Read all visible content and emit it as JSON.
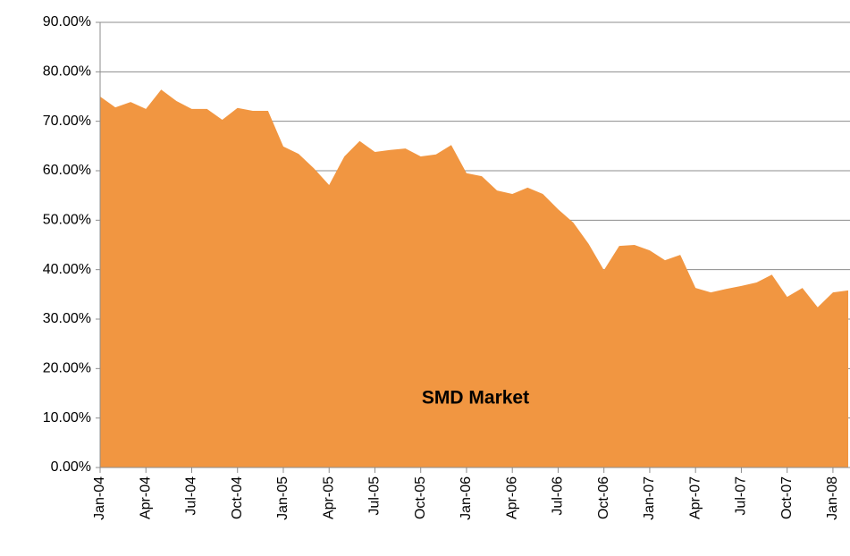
{
  "chart_data": {
    "type": "area",
    "annotation": "SMD Market",
    "color": "#f19641",
    "grid": true,
    "categories": [
      "Jan-04",
      null,
      null,
      "Apr-04",
      null,
      null,
      "Jul-04",
      null,
      null,
      "Oct-04",
      null,
      null,
      "Jan-05",
      null,
      null,
      "Apr-05",
      null,
      null,
      "Jul-05",
      null,
      null,
      "Oct-05",
      null,
      null,
      "Jan-06",
      null,
      null,
      "Apr-06",
      null,
      null,
      "Jul-06",
      null,
      null,
      "Oct-06",
      null,
      null,
      "Jan-07",
      null,
      null,
      "Apr-07",
      null,
      null,
      "Jul-07",
      null,
      null,
      "Oct-07",
      null,
      null,
      "Jan-08",
      null
    ],
    "values": [
      75.0,
      72.8,
      73.9,
      72.5,
      76.4,
      74.1,
      72.5,
      72.5,
      70.3,
      72.7,
      72.1,
      72.1,
      64.9,
      63.4,
      60.5,
      57.1,
      62.9,
      66.0,
      63.8,
      64.2,
      64.5,
      62.9,
      63.3,
      65.2,
      59.5,
      58.9,
      56.0,
      55.3,
      56.6,
      55.3,
      52.2,
      49.5,
      45.2,
      39.9,
      44.8,
      45.0,
      43.9,
      41.9,
      43.0,
      36.3,
      35.4,
      36.1,
      36.7,
      37.4,
      39.0,
      34.5,
      36.3,
      32.4,
      35.4,
      35.8
    ],
    "ylim": [
      0,
      90
    ],
    "yticks": [
      {
        "value": 0,
        "label": "0.00%"
      },
      {
        "value": 10,
        "label": "10.00%"
      },
      {
        "value": 20,
        "label": "20.00%"
      },
      {
        "value": 30,
        "label": "30.00%"
      },
      {
        "value": 40,
        "label": "40.00%"
      },
      {
        "value": 50,
        "label": "50.00%"
      },
      {
        "value": 60,
        "label": "60.00%"
      },
      {
        "value": 70,
        "label": "70.00%"
      },
      {
        "value": 80,
        "label": "80.00%"
      },
      {
        "value": 90,
        "label": "90.00%"
      }
    ]
  }
}
